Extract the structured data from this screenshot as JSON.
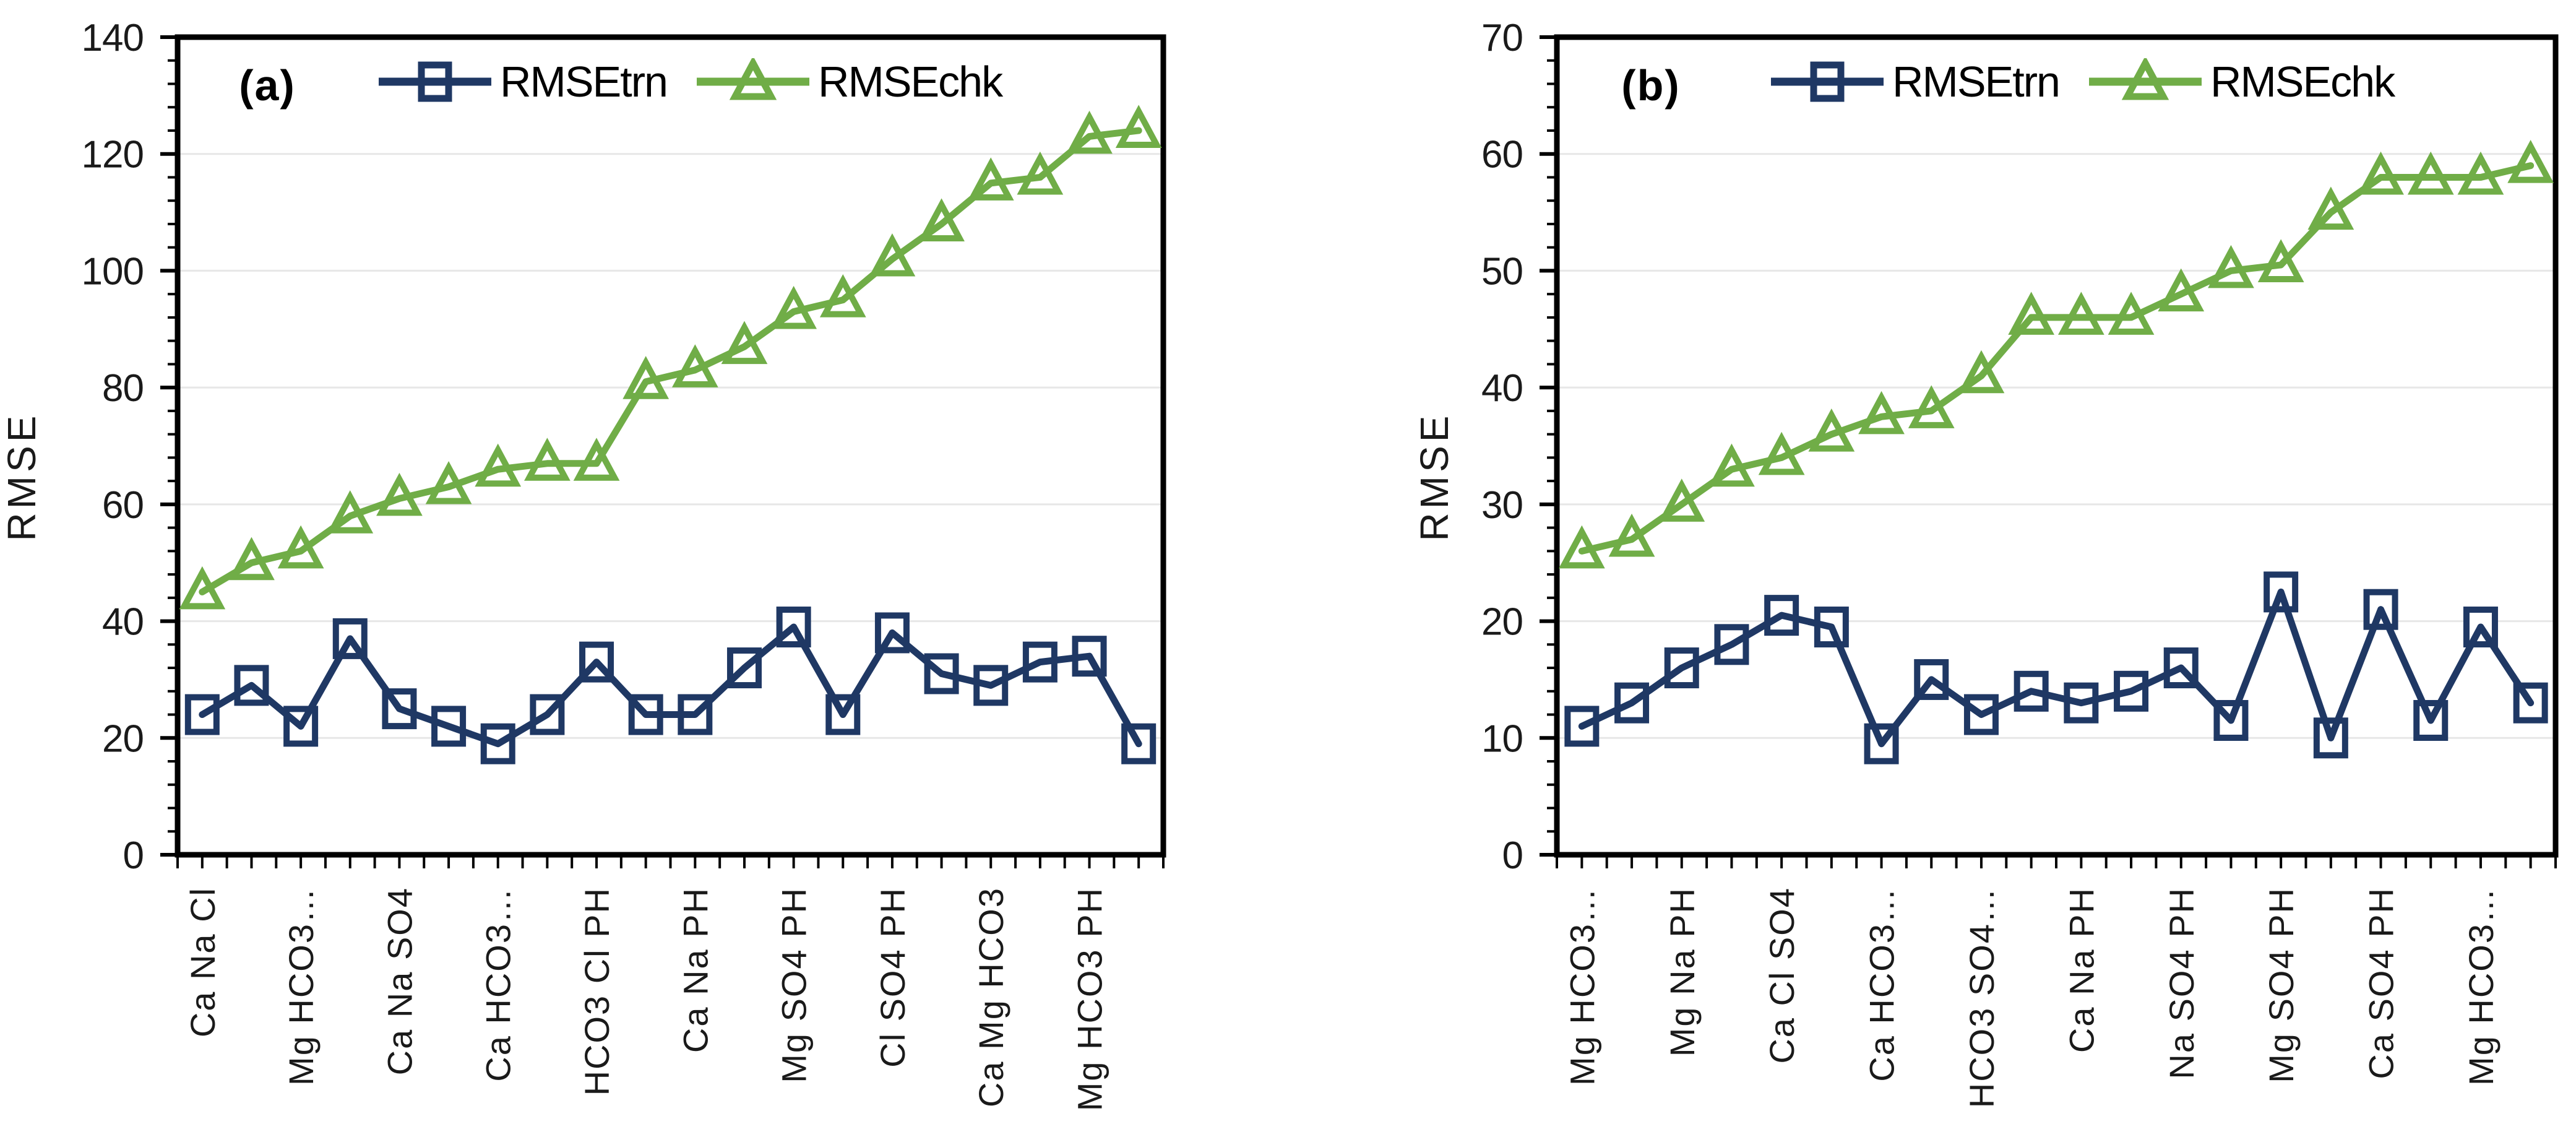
{
  "colors": {
    "rmse_trn": "#1F3864",
    "rmse_chk": "#70AD47",
    "grid": "#E7E7E7",
    "axis": "#000000",
    "background": "#FFFFFF"
  },
  "chart_data": [
    {
      "type": "line",
      "panel_label": "(a)",
      "ylabel": "RMSE",
      "xlabel": "",
      "ylim": [
        0,
        140
      ],
      "ytick_step": 20,
      "grid": true,
      "legend_position": "top-inside",
      "xtick_labels": [
        "Ca Na Cl",
        "Mg HCO3…",
        "Ca Na SO4",
        "Ca HCO3…",
        "HCO3 Cl PH",
        "Ca Na PH",
        "Mg SO4 PH",
        "Cl SO4 PH",
        "Ca Mg HCO3",
        "Mg HCO3 PH"
      ],
      "xtick_label_every": 2,
      "series": [
        {
          "name": "RMSEtrn",
          "marker": "square",
          "values": [
            24,
            29,
            22,
            37,
            25,
            22,
            19,
            24,
            33,
            24,
            24,
            32,
            39,
            24,
            38,
            31,
            29,
            33,
            34,
            19
          ]
        },
        {
          "name": "RMSEchk",
          "marker": "triangle",
          "values": [
            45,
            50,
            52,
            58,
            61,
            63,
            66,
            67,
            67,
            81,
            83,
            87,
            93,
            95,
            102,
            108,
            115,
            116,
            123,
            124
          ]
        }
      ]
    },
    {
      "type": "line",
      "panel_label": "(b)",
      "ylabel": "RMSE",
      "xlabel": "",
      "ylim": [
        0,
        70
      ],
      "ytick_step": 10,
      "grid": true,
      "legend_position": "top-inside",
      "xtick_labels": [
        "Mg HCO3…",
        "Mg Na PH",
        "Ca Cl SO4",
        "Ca HCO3…",
        "HCO3 SO4…",
        "Ca Na PH",
        "Na SO4 PH",
        "Mg SO4 PH",
        "Ca SO4 PH",
        "Mg HCO3…"
      ],
      "xtick_label_every": 2,
      "series": [
        {
          "name": "RMSEtrn",
          "marker": "square",
          "values": [
            11,
            13,
            16,
            18,
            20.5,
            19.5,
            9.5,
            15,
            12,
            14,
            13,
            14,
            16,
            11.5,
            22.5,
            10,
            21,
            11.5,
            19.5,
            13
          ]
        },
        {
          "name": "RMSEchk",
          "marker": "triangle",
          "values": [
            26,
            27,
            30,
            33,
            34,
            36,
            37.5,
            38,
            41,
            46,
            46,
            46,
            48,
            50,
            50.5,
            55,
            58,
            58,
            58,
            59
          ]
        }
      ]
    }
  ]
}
